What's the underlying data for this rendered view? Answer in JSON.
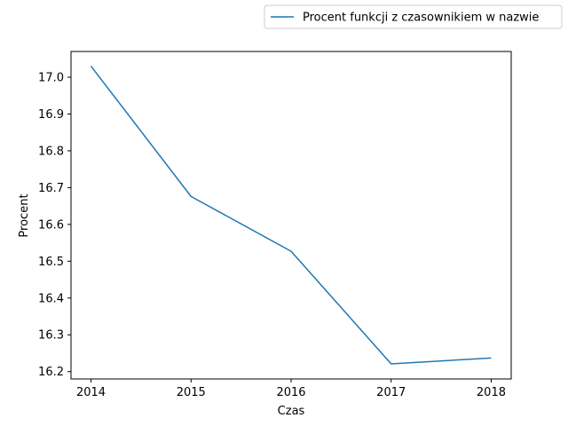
{
  "chart_data": {
    "type": "line",
    "x": [
      2014,
      2015,
      2016,
      2017,
      2018
    ],
    "series": [
      {
        "name": "Procent funkcji z czasownikiem w nazwie",
        "values": [
          17.03,
          16.676,
          16.527,
          16.221,
          16.237
        ],
        "color": "#1f77b4"
      }
    ],
    "title": "",
    "xlabel": "Czas",
    "ylabel": "Procent",
    "xlim": [
      2013.8,
      2018.2
    ],
    "ylim": [
      16.18,
      17.07
    ],
    "xticks": [
      "2014",
      "2015",
      "2016",
      "2017",
      "2018"
    ],
    "yticks": [
      "16.2",
      "16.3",
      "16.4",
      "16.5",
      "16.6",
      "16.7",
      "16.8",
      "16.9",
      "17.0"
    ],
    "grid": false,
    "legend_position": "top-right outside"
  }
}
